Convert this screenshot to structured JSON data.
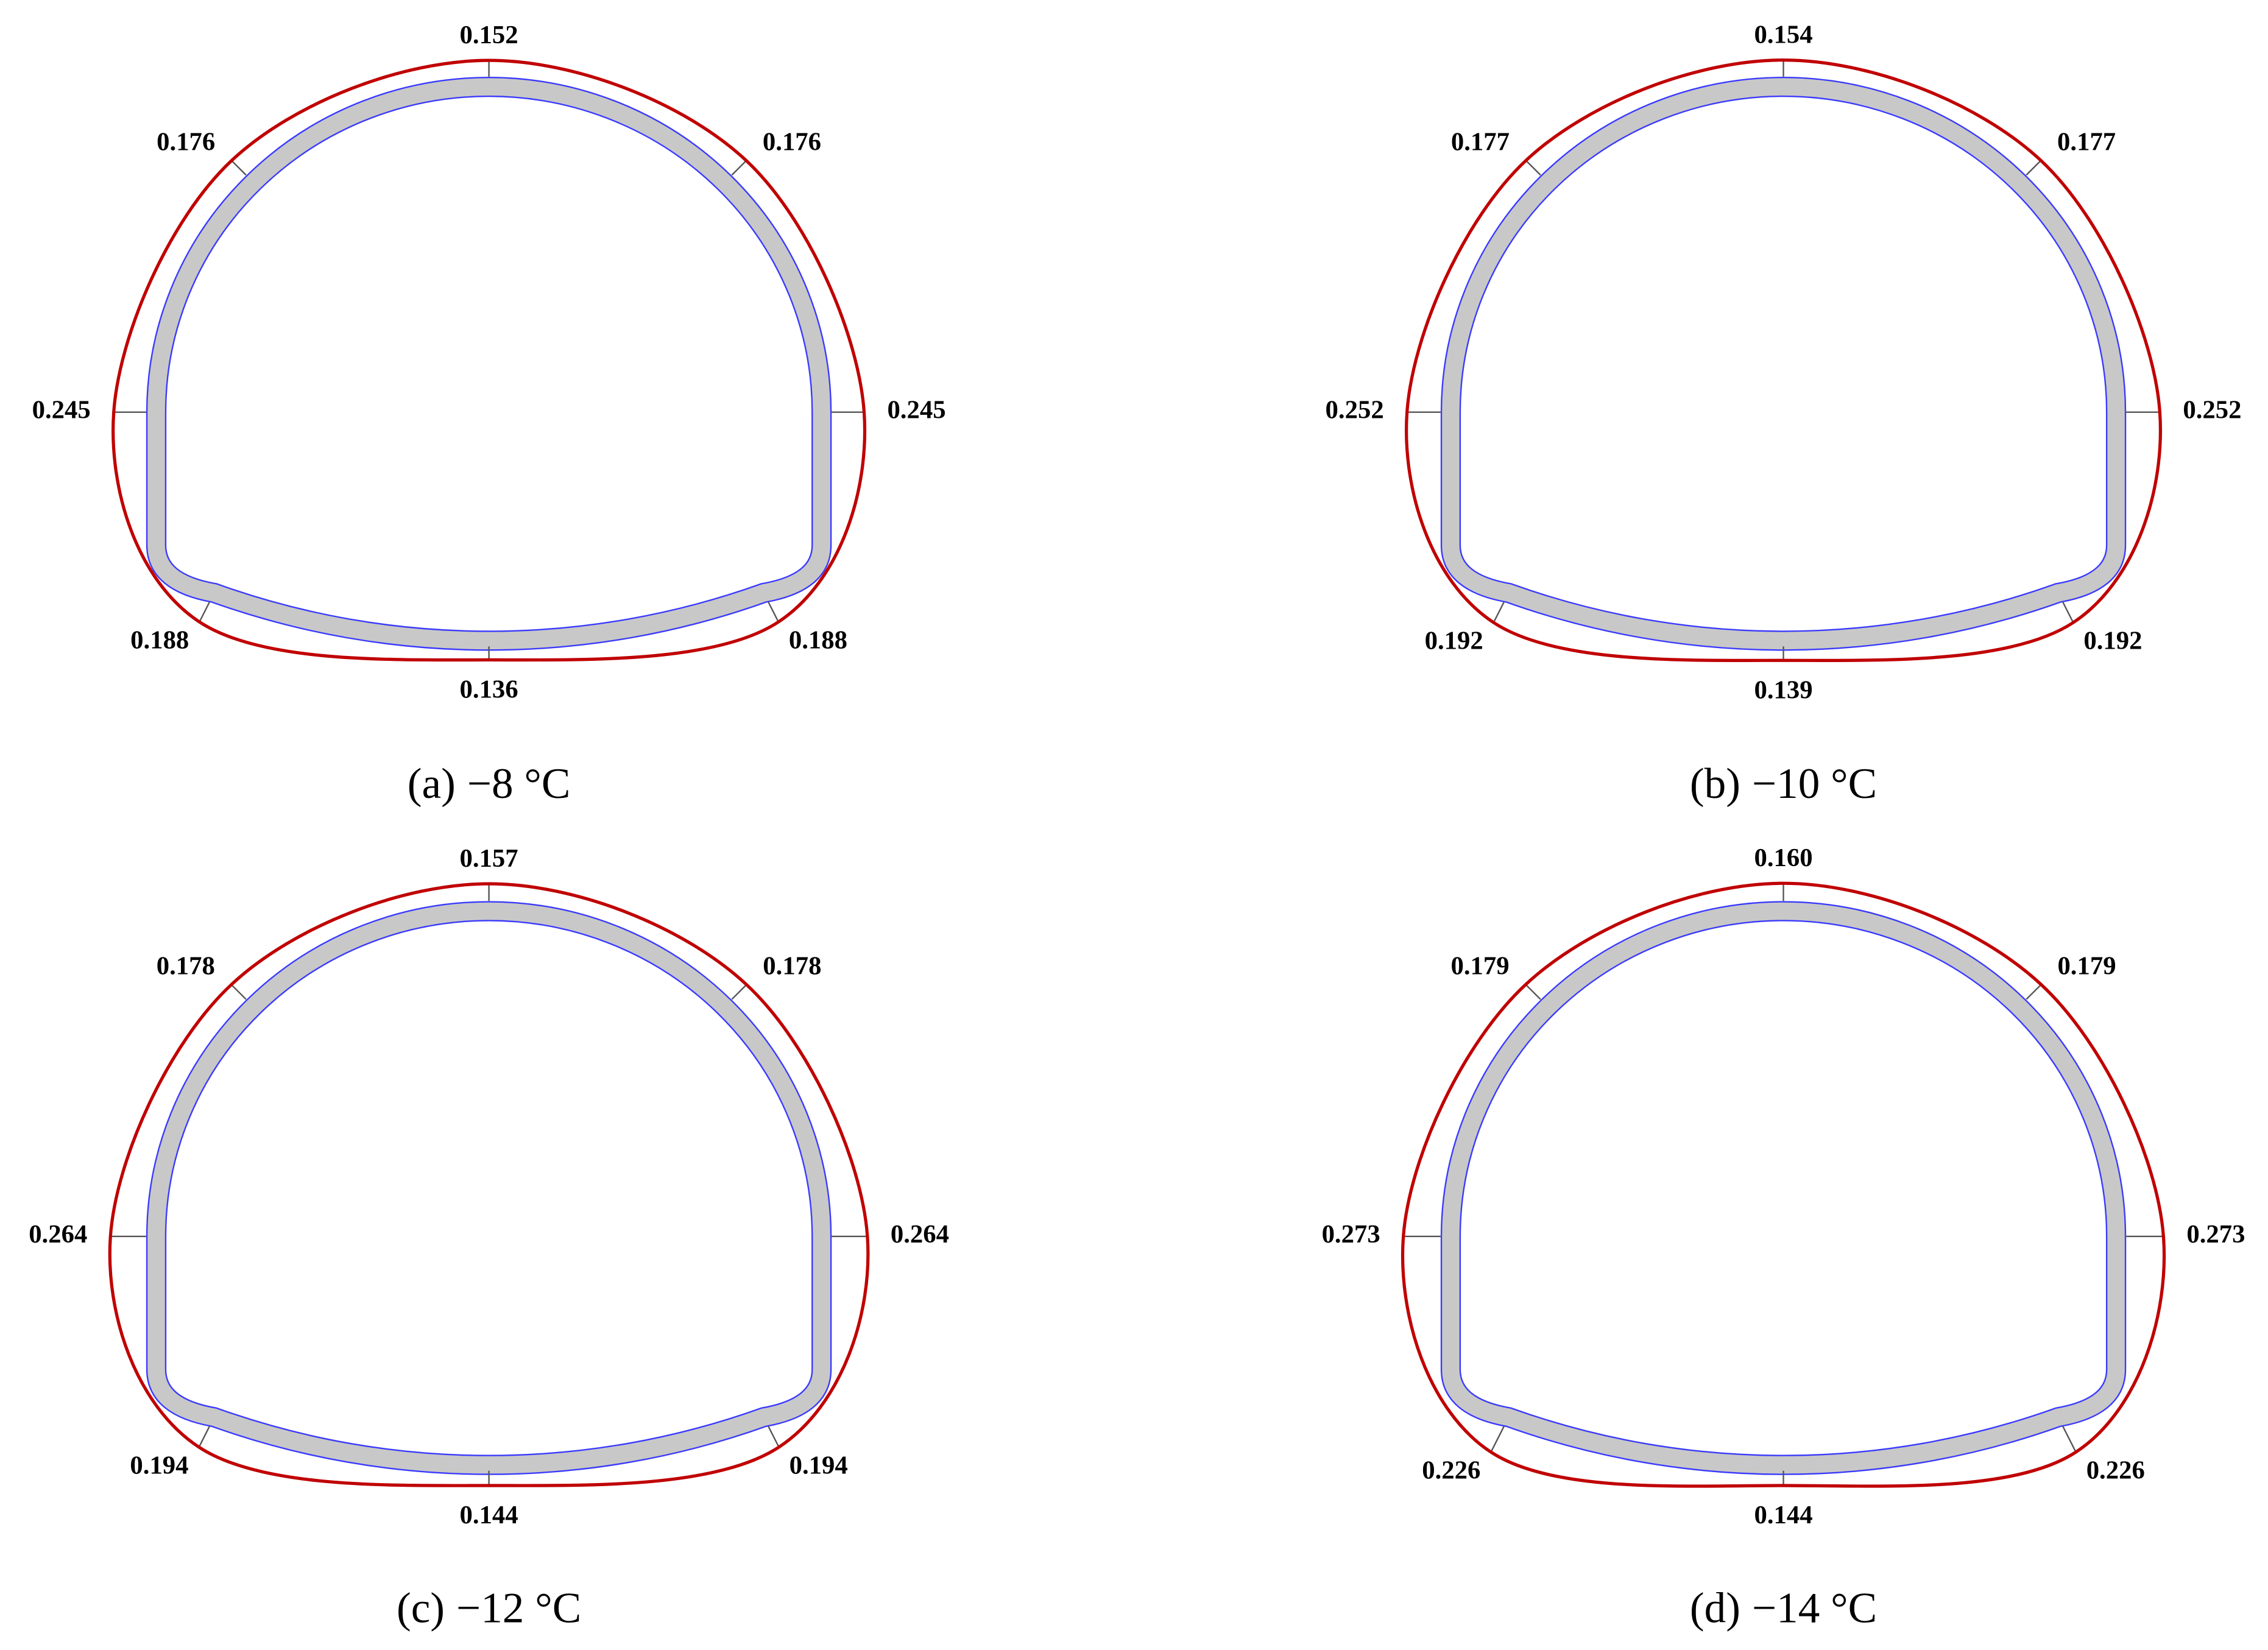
{
  "panels": [
    {
      "label": "(a)",
      "caption": "−8 °C",
      "values": {
        "crown": "0.152",
        "left_shoulder": "0.176",
        "right_shoulder": "0.176",
        "left_wall": "0.245",
        "right_wall": "0.245",
        "left_foot": "0.188",
        "right_foot": "0.188",
        "invert": "0.136"
      }
    },
    {
      "label": "(b)",
      "caption": "−10 °C",
      "values": {
        "crown": "0.154",
        "left_shoulder": "0.177",
        "right_shoulder": "0.177",
        "left_wall": "0.252",
        "right_wall": "0.252",
        "left_foot": "0.192",
        "right_foot": "0.192",
        "invert": "0.139"
      }
    },
    {
      "label": "(c)",
      "caption": "−12 °C",
      "values": {
        "crown": "0.157",
        "left_shoulder": "0.178",
        "right_shoulder": "0.178",
        "left_wall": "0.264",
        "right_wall": "0.264",
        "left_foot": "0.194",
        "right_foot": "0.194",
        "invert": "0.144"
      }
    },
    {
      "label": "(d)",
      "caption": "−14 °C",
      "values": {
        "crown": "0.160",
        "left_shoulder": "0.179",
        "right_shoulder": "0.179",
        "left_wall": "0.273",
        "right_wall": "0.273",
        "left_foot": "0.226",
        "right_foot": "0.226",
        "invert": "0.144"
      }
    }
  ]
}
